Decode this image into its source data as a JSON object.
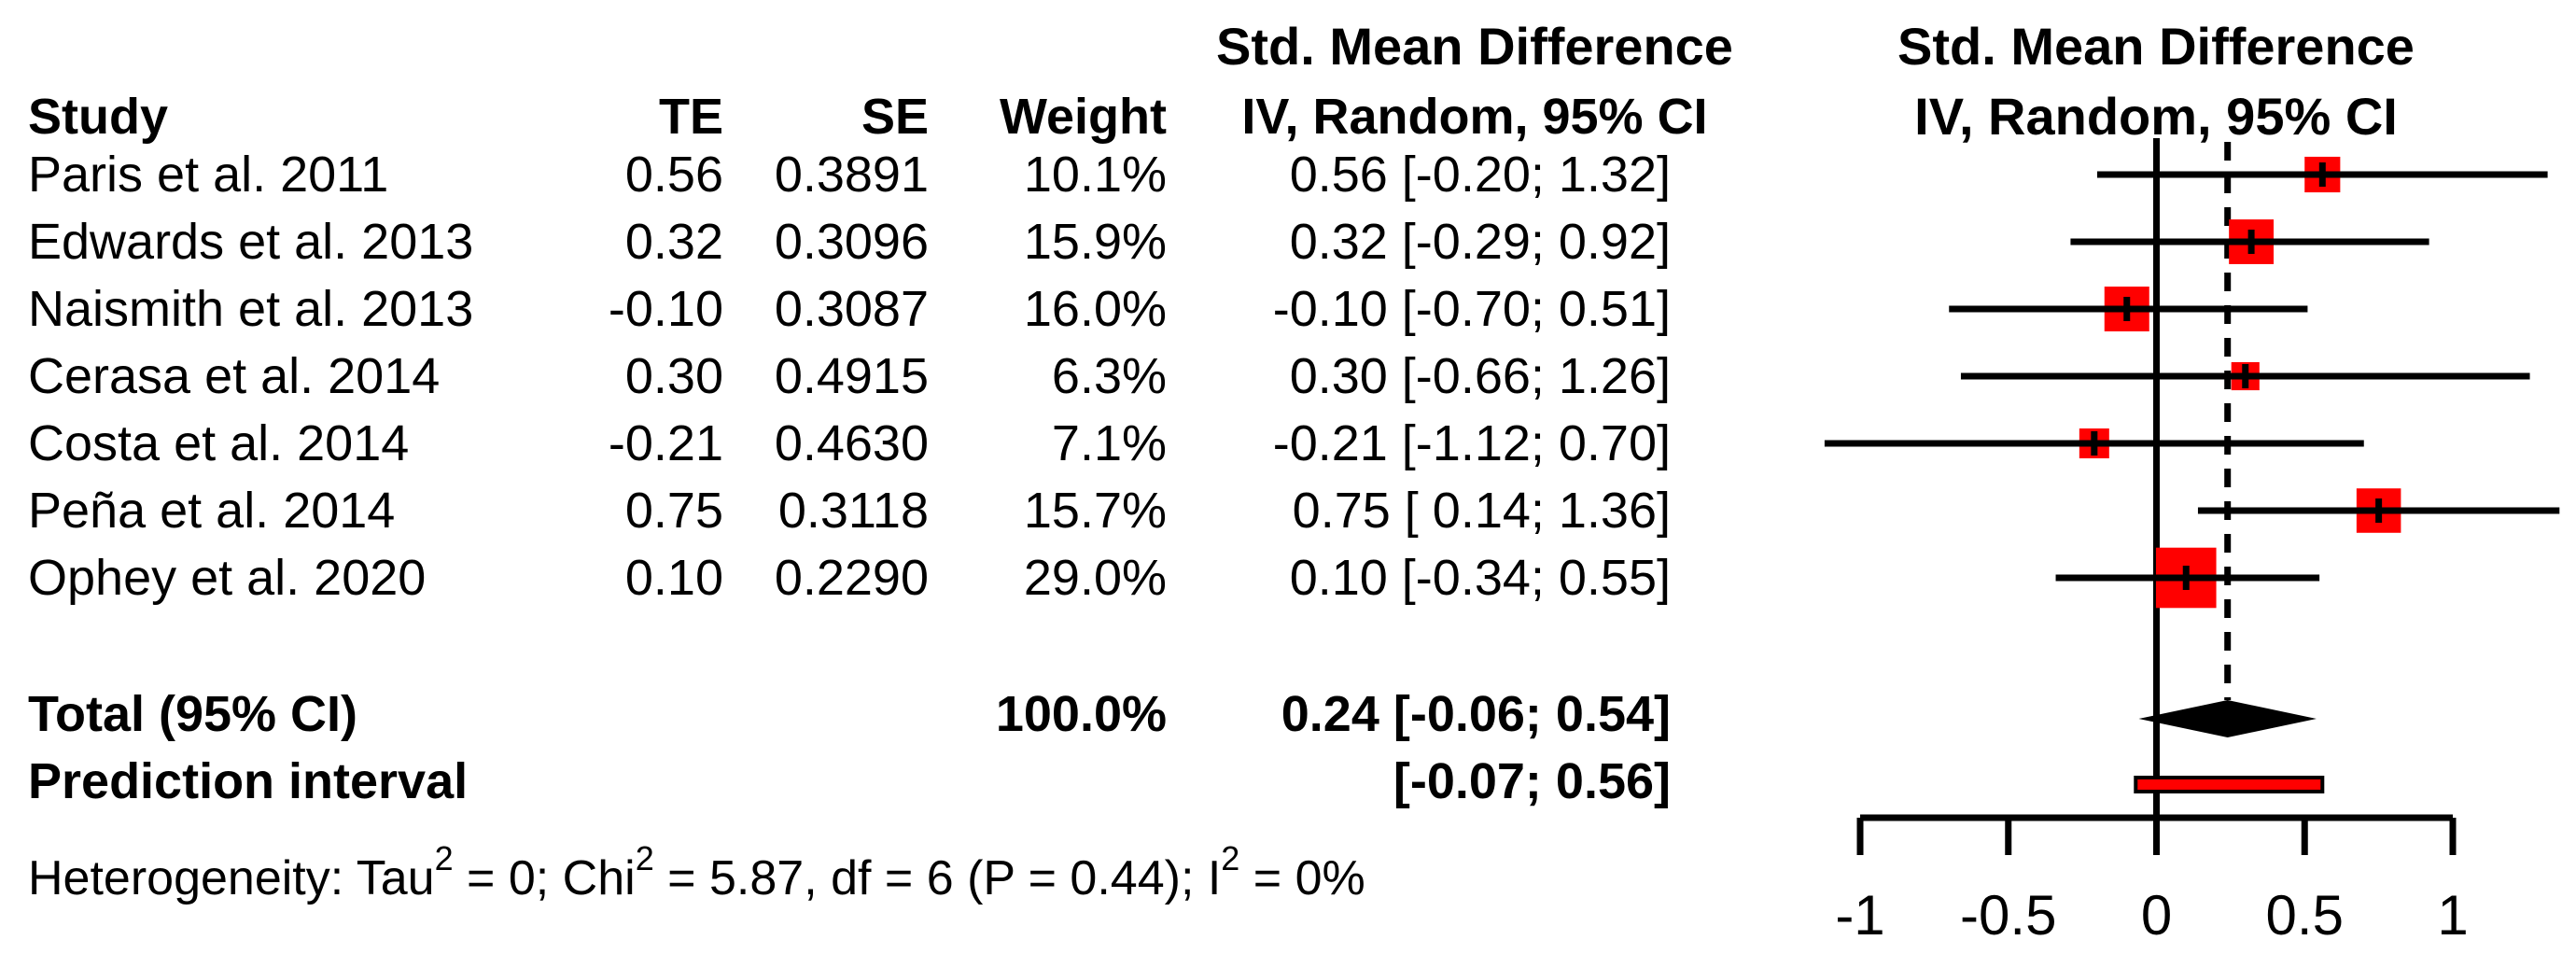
{
  "table": {
    "headers": {
      "study": "Study",
      "te": "TE",
      "se": "SE",
      "weight": "Weight",
      "smd_line1": "Std. Mean Difference",
      "smd_line2": "IV, Random, 95% CI"
    }
  },
  "plot": {
    "header_line1": "Std. Mean Difference",
    "header_line2": "IV, Random, 95% CI"
  },
  "chart_data": {
    "type": "forest",
    "effect_measure": "Std. Mean Difference",
    "model": "IV, Random, 95% CI",
    "studies": [
      {
        "name": "Paris et al. 2011",
        "te_str": "0.56",
        "se_str": "0.3891",
        "weight_str": "10.1%",
        "ci_str": "0.56 [-0.20; 1.32]",
        "est": 0.56,
        "lo": -0.2,
        "hi": 1.32,
        "weight": 10.1
      },
      {
        "name": "Edwards et al. 2013",
        "te_str": "0.32",
        "se_str": "0.3096",
        "weight_str": "15.9%",
        "ci_str": "0.32 [-0.29; 0.92]",
        "est": 0.32,
        "lo": -0.29,
        "hi": 0.92,
        "weight": 15.9
      },
      {
        "name": "Naismith et al. 2013",
        "te_str": "-0.10",
        "se_str": "0.3087",
        "weight_str": "16.0%",
        "ci_str": "-0.10 [-0.70; 0.51]",
        "est": -0.1,
        "lo": -0.7,
        "hi": 0.51,
        "weight": 16.0
      },
      {
        "name": "Cerasa et al. 2014",
        "te_str": "0.30",
        "se_str": "0.4915",
        "weight_str": "6.3%",
        "ci_str": "0.30 [-0.66; 1.26]",
        "est": 0.3,
        "lo": -0.66,
        "hi": 1.26,
        "weight": 6.3
      },
      {
        "name": "Costa et al. 2014",
        "te_str": "-0.21",
        "se_str": "0.4630",
        "weight_str": "7.1%",
        "ci_str": "-0.21 [-1.12; 0.70]",
        "est": -0.21,
        "lo": -1.12,
        "hi": 0.7,
        "weight": 7.1
      },
      {
        "name": "Peña et al. 2014",
        "te_str": "0.75",
        "se_str": "0.3118",
        "weight_str": "15.7%",
        "ci_str": "0.75 [ 0.14; 1.36]",
        "est": 0.75,
        "lo": 0.14,
        "hi": 1.36,
        "weight": 15.7
      },
      {
        "name": "Ophey et al. 2020",
        "te_str": "0.10",
        "se_str": "0.2290",
        "weight_str": "29.0%",
        "ci_str": "0.10 [-0.34; 0.55]",
        "est": 0.1,
        "lo": -0.34,
        "hi": 0.55,
        "weight": 29.0
      }
    ],
    "total": {
      "label": "Total (95% CI)",
      "weight_str": "100.0%",
      "ci_str": "0.24 [-0.06; 0.54]",
      "est": 0.24,
      "lo": -0.06,
      "hi": 0.54
    },
    "prediction": {
      "label": "Prediction interval",
      "ci_str": "[-0.07; 0.56]",
      "lo": -0.07,
      "hi": 0.56
    },
    "heterogeneity_segments": [
      {
        "text": "Heterogeneity: Tau"
      },
      {
        "sup": "2"
      },
      {
        "text": " = 0; Chi"
      },
      {
        "sup": "2"
      },
      {
        "text": " = 5.87, df = 6 (P = 0.44); I"
      },
      {
        "sup": "2"
      },
      {
        "text": " = 0%"
      }
    ],
    "pooled_effect_line": 0.24,
    "axis": {
      "min": -1,
      "max": 1,
      "ticks": [
        -1,
        -0.5,
        0,
        0.5,
        1
      ],
      "labels": [
        "-1",
        "-0.5",
        "0",
        "0.5",
        "1"
      ]
    },
    "colors": {
      "square": "#ff0000",
      "prediction_fill": "#ff0000",
      "line": "#000000",
      "diamond": "#000000",
      "text": "#000000"
    }
  }
}
